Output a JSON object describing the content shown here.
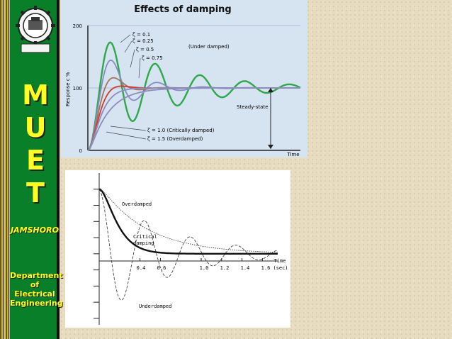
{
  "sidebar": {
    "letters": [
      "M",
      "U",
      "E",
      "T"
    ],
    "city": "JAMSHORO",
    "dept_lines": [
      "Department",
      "of",
      "Electrical",
      "Engineering"
    ]
  },
  "chart_data": [
    {
      "type": "line",
      "title": "Effects of damping",
      "xlabel": "Time",
      "ylabel": "Response c %",
      "y_ticks": [
        "0",
        "100",
        "200"
      ],
      "ylim": [
        0,
        200
      ],
      "xlim": [
        0,
        10
      ],
      "annotations": {
        "zeta_labels": [
          "ζ = 0.1",
          "ζ = 0.25",
          "ζ = 0.5",
          "ζ = 0.75"
        ],
        "under": "(Under damped)",
        "steady": "Steady-state",
        "critical": "ζ = 1.0 (Critically damped)",
        "over": "ζ = 1.5 (Overdamped)"
      },
      "series": [
        {
          "zeta": 0.1,
          "color": "#2ea84a"
        },
        {
          "zeta": 0.25,
          "color": "#8a8ac8"
        },
        {
          "zeta": 0.5,
          "color": "#a6745a"
        },
        {
          "zeta": 0.75,
          "color": "#d03a2a"
        },
        {
          "zeta": 1.0,
          "color": "#8c8cbf"
        },
        {
          "zeta": 1.5,
          "color": "#8c8cbf"
        }
      ]
    },
    {
      "type": "line",
      "xlabel": "Time",
      "x_unit": "(sec)",
      "x_ticks": [
        "0.4",
        "0.6",
        "1.0",
        "1.2",
        "1.4",
        "1.6"
      ],
      "xlim": [
        0,
        1.75
      ],
      "ylim": [
        -1.1,
        1.25
      ],
      "labels": {
        "over": "Overdamped",
        "critical_1": "Critical",
        "critical_2": "damping",
        "under": "Underdamped"
      }
    }
  ]
}
